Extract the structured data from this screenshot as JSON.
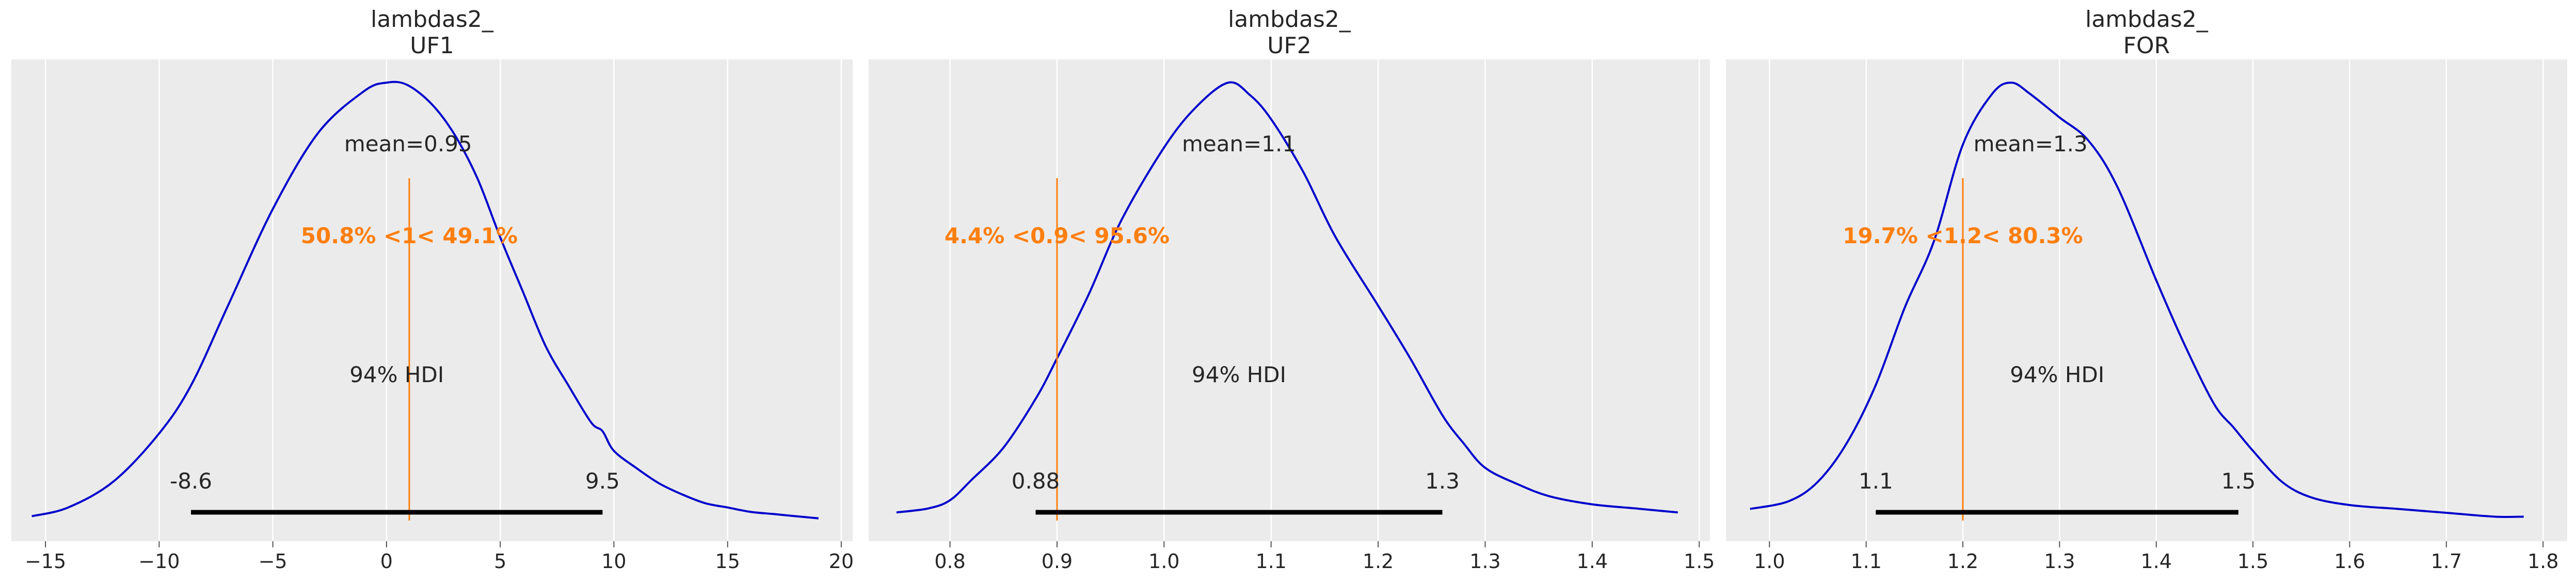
{
  "chart_data": [
    {
      "type": "area",
      "title_line1": "lambdas2_",
      "title_line2": "UF1",
      "xlim": [
        -16.5,
        20.5
      ],
      "xticks": [
        -15,
        -10,
        -5,
        0,
        5,
        10,
        15,
        20
      ],
      "xtick_labels": [
        "−15",
        "−10",
        "−5",
        "0",
        "5",
        "10",
        "15",
        "20"
      ],
      "density": {
        "x": [
          -15.6,
          -14,
          -12,
          -10,
          -8.6,
          -7,
          -5,
          -3,
          -1,
          0,
          0.9,
          2,
          3,
          4,
          5,
          6,
          7,
          8,
          9,
          9.5,
          10,
          11,
          12,
          13,
          14,
          15,
          16,
          17,
          18,
          19
        ],
        "y": [
          0.002,
          0.006,
          0.018,
          0.04,
          0.062,
          0.098,
          0.143,
          0.178,
          0.197,
          0.201,
          0.2,
          0.191,
          0.177,
          0.157,
          0.13,
          0.105,
          0.08,
          0.062,
          0.045,
          0.041,
          0.032,
          0.024,
          0.017,
          0.012,
          0.008,
          0.006,
          0.004,
          0.003,
          0.002,
          0.001
        ]
      },
      "mean_label": "mean=0.95",
      "mean": 0.95,
      "ref_val": 1,
      "ref_label": "50.8% <1< 49.1%",
      "hdi_label": "94% HDI",
      "hdi": [
        -8.6,
        9.5
      ],
      "hdi_low_label": "-8.6",
      "hdi_high_label": "9.5"
    },
    {
      "type": "area",
      "title_line1": "lambdas2_",
      "title_line2": "UF2",
      "xlim": [
        0.724,
        1.51
      ],
      "xticks": [
        0.8,
        0.9,
        1.0,
        1.1,
        1.2,
        1.3,
        1.4,
        1.5
      ],
      "xtick_labels": [
        "0.8",
        "0.9",
        "1.0",
        "1.1",
        "1.2",
        "1.3",
        "1.4",
        "1.5"
      ],
      "density": {
        "x": [
          0.75,
          0.78,
          0.8,
          0.82,
          0.85,
          0.88,
          0.9,
          0.93,
          0.96,
          1.0,
          1.03,
          1.06,
          1.08,
          1.1,
          1.13,
          1.16,
          1.2,
          1.23,
          1.26,
          1.28,
          1.3,
          1.33,
          1.36,
          1.4,
          1.44,
          1.48
        ],
        "y": [
          0.02,
          0.03,
          0.05,
          0.1,
          0.18,
          0.3,
          0.4,
          0.56,
          0.74,
          0.92,
          1.02,
          1.08,
          1.05,
          0.99,
          0.86,
          0.7,
          0.53,
          0.4,
          0.26,
          0.19,
          0.13,
          0.09,
          0.06,
          0.04,
          0.03,
          0.02
        ]
      },
      "mean_label": "mean=1.1",
      "mean": 1.07,
      "ref_val": 0.9,
      "ref_label": "4.4% <0.9< 95.6%",
      "hdi_label": "94% HDI",
      "hdi": [
        0.88,
        1.26
      ],
      "hdi_low_label": "0.88",
      "hdi_high_label": "1.3"
    },
    {
      "type": "area",
      "title_line1": "lambdas2_",
      "title_line2": "FOR",
      "xlim": [
        0.955,
        1.825
      ],
      "xticks": [
        1.0,
        1.1,
        1.2,
        1.3,
        1.4,
        1.5,
        1.6,
        1.7,
        1.8
      ],
      "xtick_labels": [
        "1.0",
        "1.1",
        "1.2",
        "1.3",
        "1.4",
        "1.5",
        "1.6",
        "1.7",
        "1.8"
      ],
      "density": {
        "x": [
          0.98,
          1.02,
          1.05,
          1.08,
          1.11,
          1.14,
          1.17,
          1.2,
          1.23,
          1.25,
          1.27,
          1.3,
          1.33,
          1.36,
          1.4,
          1.43,
          1.46,
          1.48,
          1.5,
          1.53,
          1.56,
          1.6,
          1.65,
          1.7,
          1.75,
          1.78
        ],
        "y": [
          0.03,
          0.05,
          0.1,
          0.2,
          0.35,
          0.55,
          0.72,
          0.97,
          1.1,
          1.13,
          1.1,
          1.04,
          0.98,
          0.86,
          0.62,
          0.45,
          0.3,
          0.24,
          0.18,
          0.1,
          0.06,
          0.04,
          0.03,
          0.02,
          0.01,
          0.01
        ]
      },
      "mean_label": "mean=1.3",
      "mean": 1.27,
      "ref_val": 1.2,
      "ref_label": "19.7% <1.2< 80.3%",
      "hdi_label": "94% HDI",
      "hdi": [
        1.11,
        1.485
      ],
      "hdi_low_label": "1.1",
      "hdi_high_label": "1.5"
    }
  ],
  "colors": {
    "background": "#ebebeb",
    "grid": "#ffffff",
    "density": "#0000cc",
    "reference": "#ff7f0e",
    "hdi": "#000000",
    "text": "#262626"
  }
}
